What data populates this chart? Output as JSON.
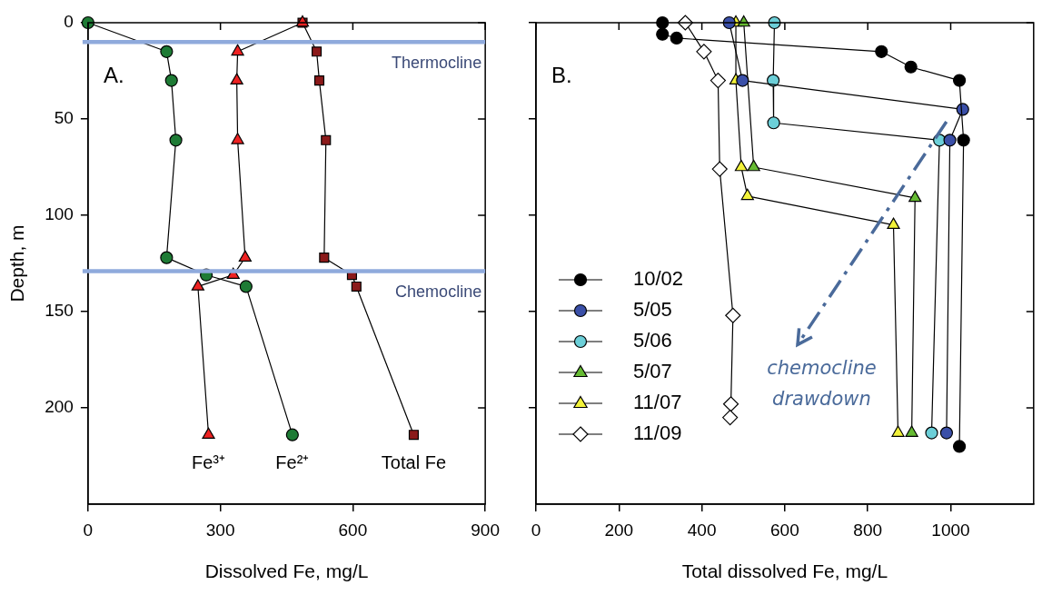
{
  "chart_data": [
    {
      "type": "line",
      "xlabel": "Dissolved Fe, mg/L",
      "ylabel": "Depth, m",
      "xlim": [
        0,
        900
      ],
      "xticks": [
        0,
        300,
        600,
        900
      ],
      "ylim": [
        250,
        0
      ],
      "yticks": [
        0,
        50,
        100,
        150,
        200
      ],
      "legend": false,
      "annotations": [
        "A."
      ],
      "ref_lines": [
        {
          "axis": "y",
          "value": 10,
          "label": "Thermocline",
          "color": "#8faadc"
        },
        {
          "axis": "y",
          "value": 129,
          "label": "Chemocline",
          "color": "#8faadc"
        }
      ],
      "series": [
        {
          "name": "Fe³⁺",
          "color": "#ee2222",
          "marker": "triangle",
          "x": [
            486,
            339,
            337,
            339,
            356,
            329,
            249,
            273
          ],
          "values": [
            0,
            15,
            30,
            61,
            122,
            131,
            137,
            214
          ]
        },
        {
          "name": "Fe²⁺",
          "color": "#1e7b35",
          "marker": "circle",
          "x": [
            0,
            178,
            189,
            199,
            178,
            268,
            358,
            463
          ],
          "values": [
            0,
            15,
            30,
            61,
            122,
            131,
            137,
            214
          ]
        },
        {
          "name": "Total Fe",
          "color": "#8b1a1a",
          "marker": "square",
          "x": [
            486,
            518,
            524,
            539,
            535,
            598,
            608,
            738
          ],
          "values": [
            0,
            15,
            30,
            61,
            122,
            131,
            137,
            214
          ]
        }
      ]
    },
    {
      "type": "line",
      "xlabel": "Total dissolved Fe, mg/L",
      "xlim": [
        0,
        1200
      ],
      "xticks": [
        0,
        200,
        400,
        600,
        800,
        1000
      ],
      "ylim": [
        250,
        0
      ],
      "yticks": [
        0,
        50,
        100,
        150,
        200
      ],
      "tick_labels": "x",
      "legend": "bottom left",
      "annotations": [
        "B.",
        "chemocline drawdown"
      ],
      "series": [
        {
          "name": "10/02",
          "color": "#000000",
          "marker": "circle",
          "x": [
            305,
            305,
            339,
            833,
            904,
            1021,
            1031,
            1021
          ],
          "values": [
            0,
            6,
            8,
            15,
            23,
            30,
            61,
            220
          ]
        },
        {
          "name": "5/05",
          "color": "#3a4fa8",
          "marker": "circle",
          "x": [
            466,
            498,
            1029,
            998,
            990
          ],
          "values": [
            0,
            30,
            45,
            61,
            213
          ]
        },
        {
          "name": "5/06",
          "color": "#6ccfd8",
          "marker": "circle",
          "x": [
            575,
            572,
            573,
            973,
            954
          ],
          "values": [
            0,
            30,
            52,
            61,
            213
          ]
        },
        {
          "name": "5/07",
          "color": "#66bb33",
          "marker": "triangle",
          "x": [
            501,
            525,
            914,
            906
          ],
          "values": [
            0,
            75,
            91,
            213
          ]
        },
        {
          "name": "11/07",
          "color": "#f2f23a",
          "marker": "triangle",
          "x": [
            482,
            482,
            495,
            510,
            862,
            873
          ],
          "values": [
            0,
            30,
            75,
            90,
            105,
            213
          ]
        },
        {
          "name": "11/09",
          "color": "#ffffff",
          "marker": "diamond",
          "x": [
            360,
            405,
            439,
            443,
            475,
            470,
            468
          ],
          "values": [
            0,
            15,
            30,
            76,
            152,
            198,
            205
          ]
        }
      ]
    }
  ]
}
